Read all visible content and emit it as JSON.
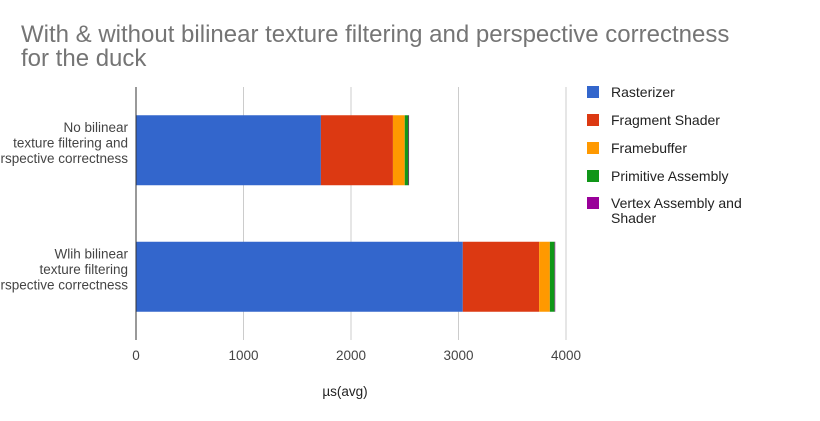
{
  "chart_data": {
    "type": "bar",
    "orientation": "horizontal",
    "stacked": true,
    "title": "With & without bilinear texture filtering and perspective correctness for the duck",
    "xlabel": "µs(avg)",
    "ylabel": "",
    "xlim": [
      0,
      4000
    ],
    "xticks": [
      0,
      1000,
      2000,
      3000,
      4000
    ],
    "grid": true,
    "legend_position": "right",
    "categories": [
      "No bilinear texture filtering and perspective correctness",
      "Wlih bilinear texture filtering and perspective correctness"
    ],
    "series": [
      {
        "name": "Rasterizer",
        "color": "#3366cc",
        "values": [
          1720,
          3040
        ]
      },
      {
        "name": "Fragment Shader",
        "color": "#dc3912",
        "values": [
          670,
          710
        ]
      },
      {
        "name": "Framebuffer",
        "color": "#ff9900",
        "values": [
          110,
          100
        ]
      },
      {
        "name": "Primitive Assembly",
        "color": "#109618",
        "values": [
          35,
          45
        ]
      },
      {
        "name": "Vertex Assembly and Shader",
        "color": "#990099",
        "values": [
          5,
          5
        ]
      }
    ]
  }
}
